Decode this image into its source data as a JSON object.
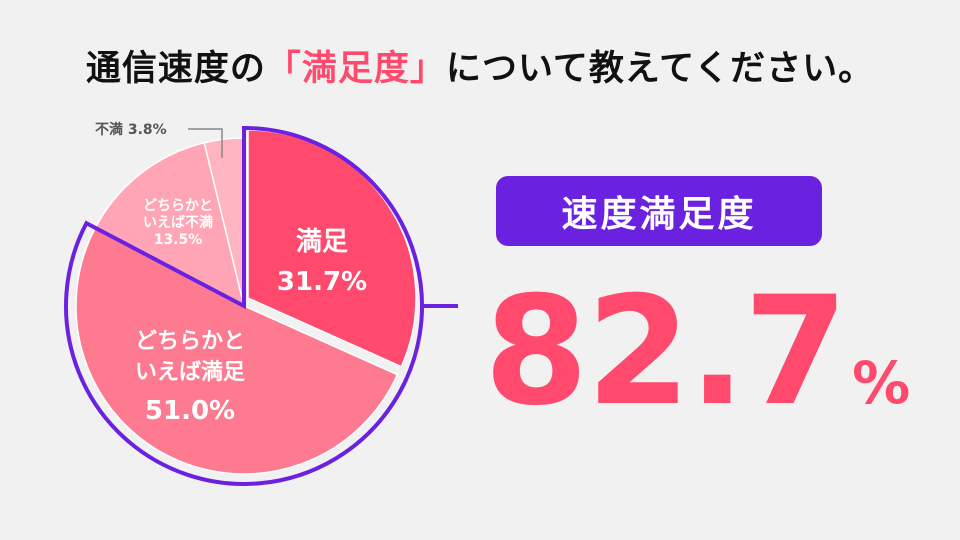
{
  "title": {
    "before": "通信速度の",
    "highlight": "「満足度」",
    "after": "について教えてください。"
  },
  "badge": "速度満足度",
  "big_value": {
    "number": "82.7",
    "unit": "%"
  },
  "colors": {
    "accent": "#ff4a6e",
    "purple": "#6a22e0",
    "slice_satisfied": "#ff4a6e",
    "slice_somewhat_satisfied": "#fe7a90",
    "slice_somewhat_dissatisfied": "#ffa5b5",
    "slice_dissatisfied": "#ffb4c2"
  },
  "chart_data": {
    "type": "pie",
    "slices": [
      {
        "lines": [
          "満足",
          "31.7%"
        ],
        "value": 31.7
      },
      {
        "lines": [
          "どちらかと",
          "いえば満足",
          "51.0%"
        ],
        "value": 51.0
      },
      {
        "lines": [
          "どちらかと",
          "いえば不満",
          "13.5%"
        ],
        "value": 13.5
      },
      {
        "lines": [
          "不満 3.8%"
        ],
        "value": 3.8
      }
    ]
  }
}
